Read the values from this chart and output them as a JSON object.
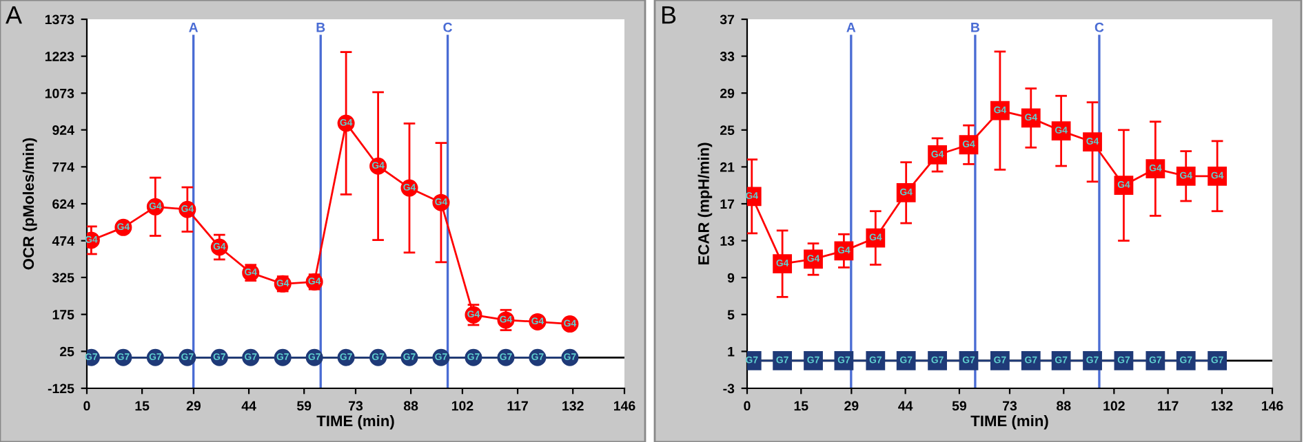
{
  "chart_data": [
    {
      "type": "line",
      "annotations": [
        "A"
      ],
      "xlabel": "TIME (min)",
      "ylabel": "OCR (pMoles/min)",
      "xlim": [
        0,
        146
      ],
      "xticks": [
        0,
        15,
        29,
        44,
        59,
        73,
        88,
        102,
        117,
        132,
        146
      ],
      "ylim": [
        -125,
        1373
      ],
      "yticks": [
        -125,
        25,
        175,
        325,
        474,
        624,
        774,
        924,
        1073,
        1223,
        1373
      ],
      "grid": false,
      "legend": false,
      "marker": "circle",
      "line_style": "solid",
      "x": [
        1.2,
        9.9,
        18.6,
        27.3,
        36.0,
        44.5,
        53.2,
        61.8,
        70.4,
        79.1,
        87.6,
        96.2,
        105.0,
        113.8,
        122.4,
        131.2
      ],
      "series": [
        {
          "name": "G4",
          "color": "#ff0000",
          "values": [
            476,
            528,
            612,
            601,
            448,
            344,
            299,
            307,
            951,
            777,
            688,
            629,
            173,
            152,
            145,
            136
          ],
          "errors": [
            56,
            null,
            118,
            90,
            50,
            32,
            30,
            30,
            289,
            300,
            262,
            242,
            41,
            41,
            null,
            null
          ]
        },
        {
          "name": "G7",
          "color": "#1f3a78",
          "values": [
            0,
            0,
            0,
            0,
            0,
            0,
            0,
            0,
            0,
            0,
            0,
            0,
            0,
            0,
            0,
            0
          ]
        }
      ],
      "ref_lines": [
        {
          "axis": "x",
          "value": 28.95,
          "label": "A",
          "color": "#4a6cd4"
        },
        {
          "axis": "x",
          "value": 63.5,
          "label": "B",
          "color": "#4a6cd4"
        },
        {
          "axis": "x",
          "value": 98.0,
          "label": "C",
          "color": "#4a6cd4"
        },
        {
          "axis": "y",
          "value": 0,
          "color": "#000000"
        }
      ]
    },
    {
      "type": "line",
      "annotations": [
        "B"
      ],
      "xlabel": "TIME (min)",
      "ylabel": "ECAR (mpH/min)",
      "xlim": [
        0,
        146
      ],
      "xticks": [
        0,
        15,
        29,
        44,
        59,
        73,
        88,
        102,
        117,
        132,
        146
      ],
      "ylim": [
        -3,
        37
      ],
      "yticks": [
        -3,
        1,
        5,
        9,
        13,
        17,
        21,
        25,
        29,
        33,
        37
      ],
      "grid": false,
      "legend": false,
      "marker": "square",
      "line_style": "solid",
      "x": [
        1.3,
        9.8,
        18.4,
        26.9,
        35.7,
        44.2,
        52.9,
        61.6,
        70.3,
        78.9,
        87.3,
        96.0,
        104.7,
        113.5,
        122.0,
        130.7
      ],
      "series": [
        {
          "name": "G4",
          "color": "#ff0000",
          "values": [
            17.8,
            10.5,
            11.0,
            11.9,
            13.3,
            18.2,
            22.3,
            23.4,
            27.1,
            26.3,
            24.9,
            23.7,
            19.0,
            20.8,
            20.0,
            20.0
          ],
          "errors": [
            4.0,
            3.6,
            1.7,
            1.8,
            2.9,
            3.3,
            1.8,
            2.1,
            6.4,
            3.2,
            3.8,
            4.3,
            6.0,
            5.1,
            2.7,
            3.8
          ]
        },
        {
          "name": "G7",
          "color": "#1f3a78",
          "values": [
            0,
            0,
            0,
            0,
            0,
            0,
            0,
            0,
            0,
            0,
            0,
            0,
            0,
            0,
            0,
            0
          ]
        }
      ],
      "ref_lines": [
        {
          "axis": "x",
          "value": 28.9,
          "label": "A",
          "color": "#4a6cd4"
        },
        {
          "axis": "x",
          "value": 63.4,
          "label": "B",
          "color": "#4a6cd4"
        },
        {
          "axis": "x",
          "value": 97.9,
          "label": "C",
          "color": "#4a6cd4"
        },
        {
          "axis": "y",
          "value": 0,
          "color": "#000000"
        }
      ]
    }
  ]
}
